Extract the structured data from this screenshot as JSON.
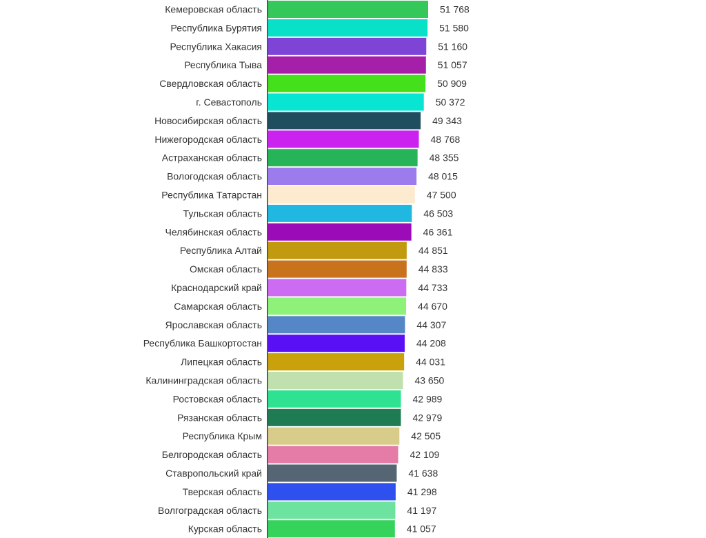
{
  "chart_data": {
    "type": "bar",
    "orientation": "horizontal",
    "title": "",
    "xlabel": "",
    "ylabel": "",
    "xlim": [
      0,
      51768
    ],
    "grid": false,
    "legend": "none",
    "categories": [
      "Кемеровская область",
      "Республика Бурятия",
      "Республика Хакасия",
      "Республика Тыва",
      "Свердловская область",
      "г. Севастополь",
      "Новосибирская область",
      "Нижегородская область",
      "Астраханская область",
      "Вологодская область",
      "Республика Татарстан",
      "Тульская область",
      "Челябинская область",
      "Республика Алтай",
      "Омская область",
      "Краснодарский край",
      "Самарская область",
      "Ярославская область",
      "Республика Башкортостан",
      "Липецкая область",
      "Калининградская область",
      "Ростовская область",
      "Рязанская область",
      "Республика Крым",
      "Белгородская область",
      "Ставропольский край",
      "Тверская область",
      "Волгоградская область",
      "Курская область"
    ],
    "values": [
      51768,
      51580,
      51160,
      51057,
      50909,
      50372,
      49343,
      48768,
      48355,
      48015,
      47500,
      46503,
      46361,
      44851,
      44833,
      44733,
      44670,
      44307,
      44208,
      44031,
      43650,
      42989,
      42979,
      42505,
      42109,
      41638,
      41298,
      41197,
      41057
    ],
    "value_labels": [
      "51 768",
      "51 580",
      "51 160",
      "51 057",
      "50 909",
      "50 372",
      "49 343",
      "48 768",
      "48 355",
      "48 015",
      "47 500",
      "46 503",
      "46 361",
      "44 851",
      "44 833",
      "44 733",
      "44 670",
      "44 307",
      "44 208",
      "44 031",
      "43 650",
      "42 989",
      "42 979",
      "42 505",
      "42 109",
      "41 638",
      "41 298",
      "41 197",
      "41 057"
    ],
    "colors": [
      "#34c759",
      "#08e1c8",
      "#7d44d6",
      "#a51fa8",
      "#44e01c",
      "#08e6d3",
      "#1f4e5f",
      "#cc22ef",
      "#27b357",
      "#9c7cec",
      "#fdebd0",
      "#20b8e0",
      "#9b0bb8",
      "#c19a0f",
      "#c8731b",
      "#cc6cf2",
      "#8ef27a",
      "#5587c6",
      "#5a10f5",
      "#c9a20b",
      "#c0e1ad",
      "#2ee292",
      "#1e7b52",
      "#d8cc8a",
      "#e57ca8",
      "#566573",
      "#2e50ef",
      "#6ee29f",
      "#35d35b"
    ]
  }
}
